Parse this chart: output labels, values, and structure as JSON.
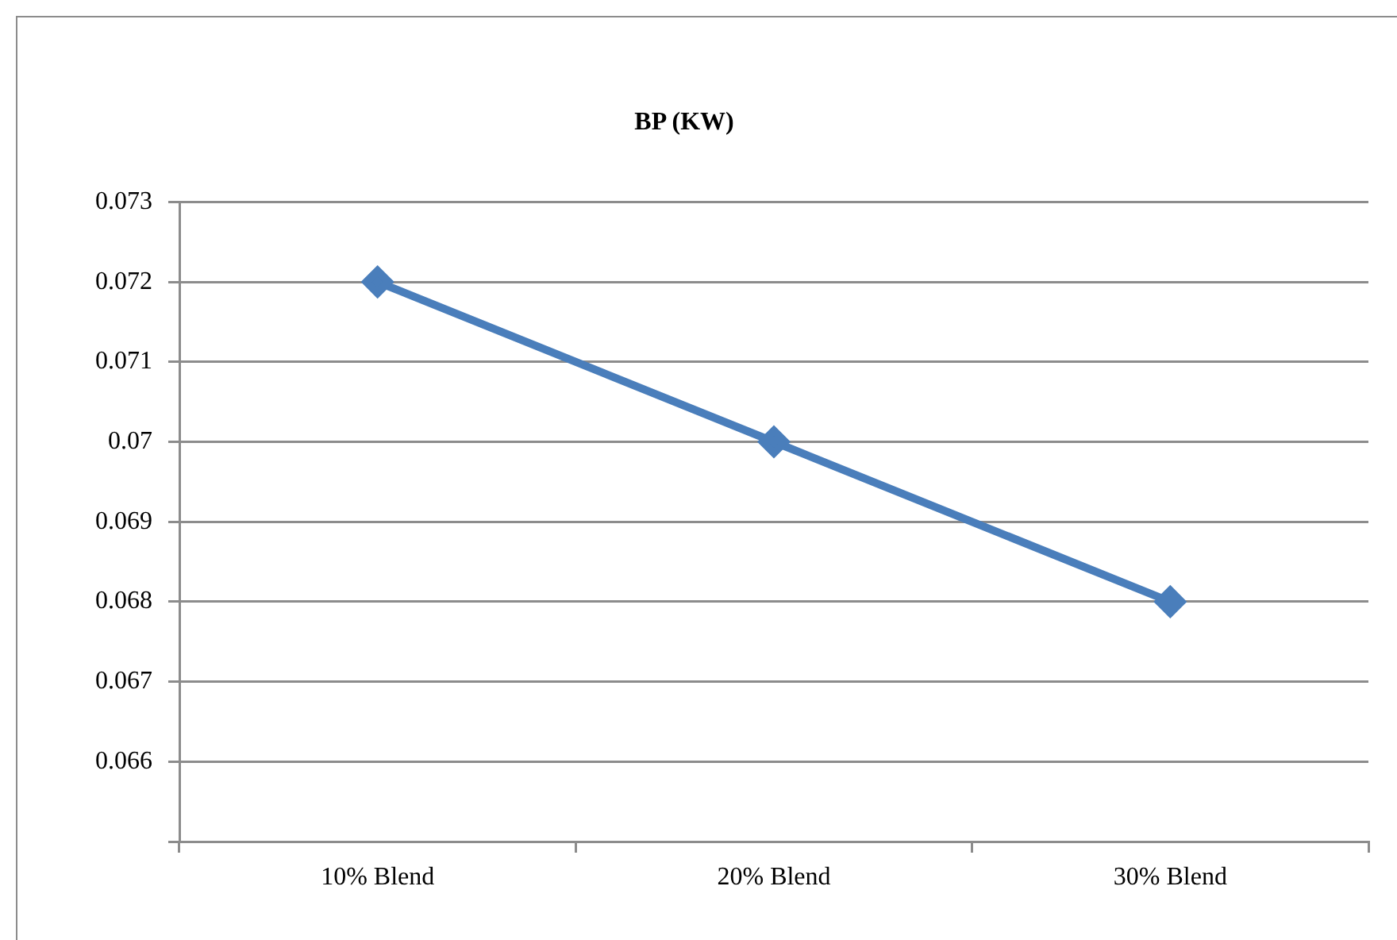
{
  "chart_data": {
    "type": "line",
    "title": "BP (KW)",
    "categories": [
      "10% Blend",
      "20% Blend",
      "30% Blend"
    ],
    "series": [
      {
        "color": "#4a7ebb",
        "values": [
          0.072,
          0.07,
          0.068
        ]
      }
    ],
    "ylim": [
      0.065,
      0.073
    ],
    "yticks": [
      {
        "value": 0.065,
        "label": null
      },
      0.066,
      0.067,
      0.068,
      0.069,
      0.07,
      0.071,
      0.072,
      0.073
    ],
    "grid": "y",
    "legend": false,
    "marker": "diamond",
    "line_style": "solid"
  }
}
